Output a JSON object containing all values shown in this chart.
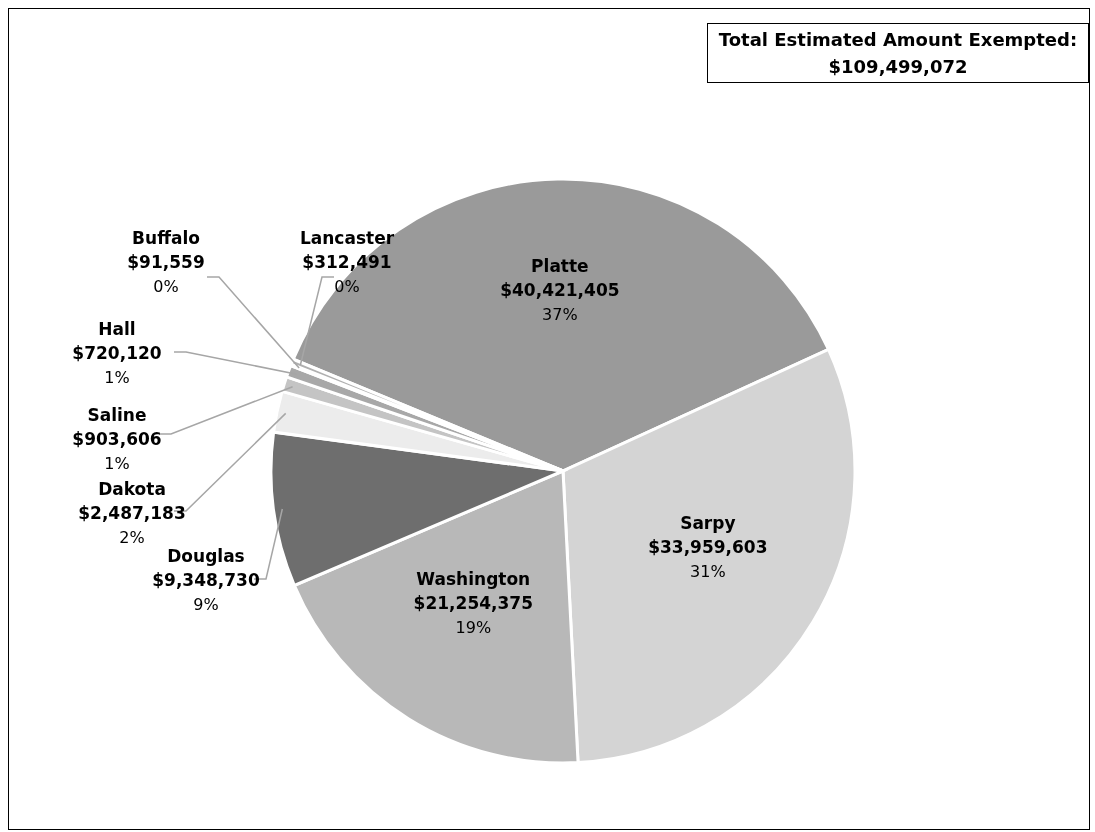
{
  "chart_data": {
    "type": "pie",
    "categories": [
      "Platte",
      "Sarpy",
      "Washington",
      "Douglas",
      "Dakota",
      "Saline",
      "Hall",
      "Buffalo",
      "Lancaster"
    ],
    "values": [
      40421405,
      33959603,
      21254375,
      9348730,
      2487183,
      903606,
      720120,
      91559,
      312491
    ],
    "colors": [
      "#9a9a9a",
      "#d4d4d4",
      "#b8b8b8",
      "#6e6e6e",
      "#ececec",
      "#c4c4c4",
      "#a8a8a8",
      "#8a8a8a",
      "#b0b0b0"
    ],
    "value_labels": [
      "$40,421,405\n37%",
      "$33,959,603\n31%",
      "$21,254,375\n19%",
      "$9,348,730\n9%",
      "$2,487,183\n2%",
      "$903,606\n1%",
      "$720,120\n1%",
      "$91,559\n0%",
      "$312,491\n0%"
    ],
    "annotations": [
      "Total Estimated Amount Exempted:\n$109,499,072"
    ],
    "legend": false
  }
}
